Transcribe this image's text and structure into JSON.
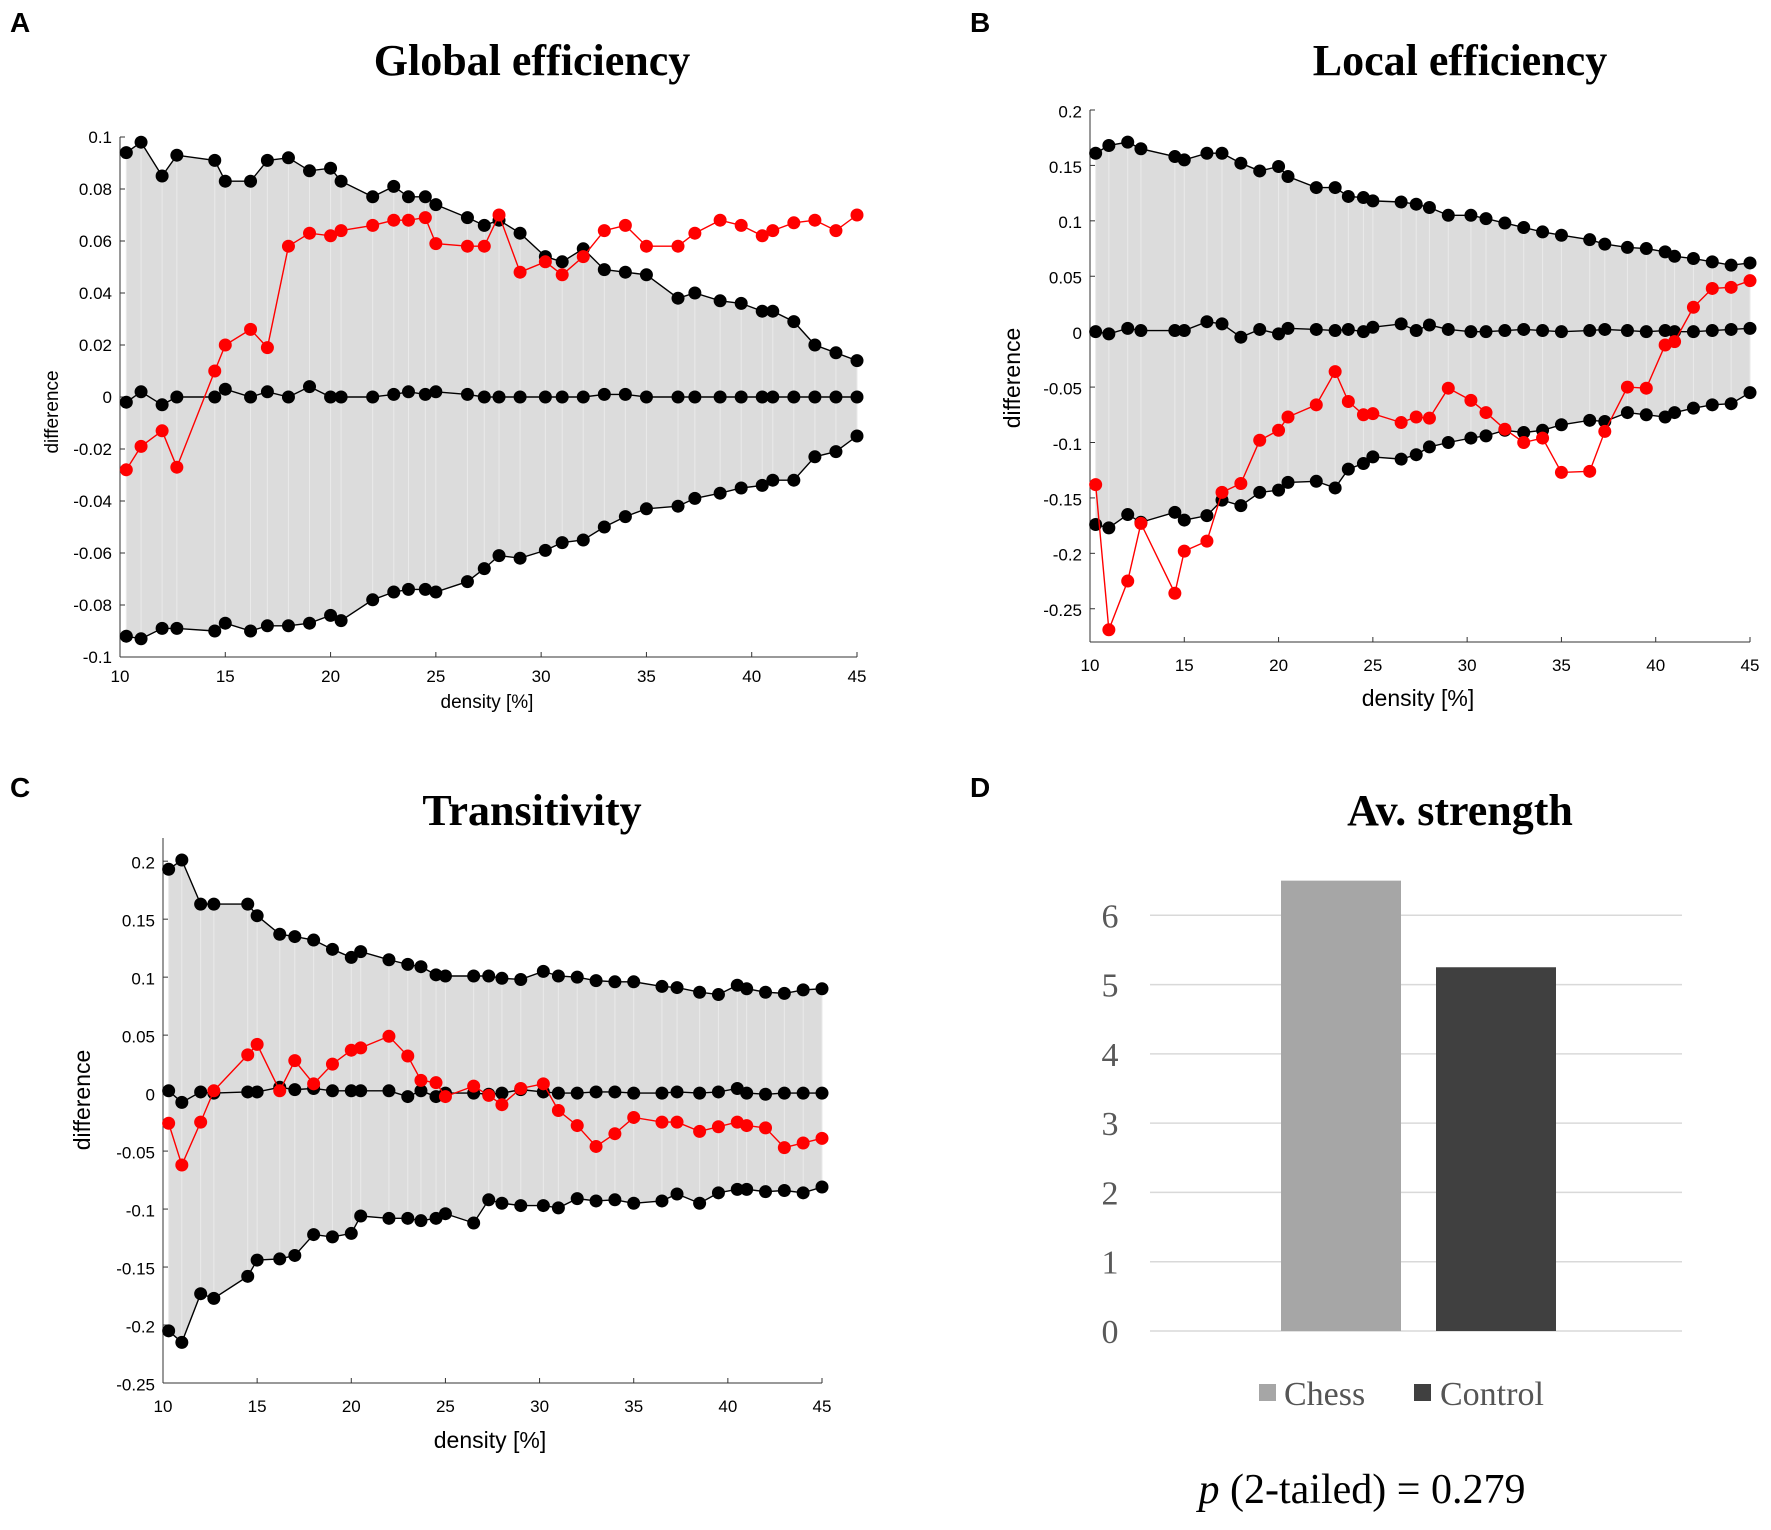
{
  "chart_data": [
    {
      "panel": "A",
      "type": "line",
      "title": "Global efficiency",
      "xlabel": "density [%]",
      "ylabel": "difference",
      "xlim": [
        10,
        45
      ],
      "ylim": [
        -0.1,
        0.1
      ],
      "xticks": [
        "10",
        "15",
        "20",
        "25",
        "30",
        "35",
        "40",
        "45"
      ],
      "yticks": [
        "-0.1",
        "-0.08",
        "-0.06",
        "-0.04",
        "-0.02",
        "0",
        "0.02",
        "0.04",
        "0.06",
        "0.08",
        "0.1"
      ],
      "x": [
        10.3,
        11,
        12,
        12.7,
        14.5,
        15,
        16.2,
        17,
        18,
        19,
        20,
        20.5,
        22,
        23,
        23.7,
        24.5,
        25,
        26.5,
        27.3,
        28,
        29,
        30.2,
        31,
        32,
        33,
        34,
        35,
        36.5,
        37.3,
        38.5,
        39.5,
        40.5,
        41,
        42,
        43,
        44,
        45
      ],
      "series": [
        {
          "name": "upper bound",
          "color": "#000000",
          "values": [
            0.094,
            0.098,
            0.085,
            0.093,
            0.091,
            0.083,
            0.083,
            0.091,
            0.092,
            0.087,
            0.088,
            0.083,
            0.077,
            0.081,
            0.077,
            0.077,
            0.074,
            0.069,
            0.066,
            0.068,
            0.063,
            0.054,
            0.052,
            0.057,
            0.049,
            0.048,
            0.047,
            0.038,
            0.04,
            0.037,
            0.036,
            0.033,
            0.033,
            0.029,
            0.02,
            0.017,
            0.014
          ]
        },
        {
          "name": "mean",
          "color": "#000000",
          "values": [
            -0.002,
            0.002,
            -0.003,
            0,
            0,
            0.003,
            0,
            0.002,
            0,
            0.004,
            0,
            0,
            0,
            0.001,
            0.002,
            0.001,
            0.002,
            0.001,
            0,
            0,
            0,
            0,
            0,
            0,
            0.001,
            0.001,
            0,
            0,
            0,
            0,
            0,
            0,
            0,
            0,
            0,
            0,
            0
          ]
        },
        {
          "name": "lower bound",
          "color": "#000000",
          "values": [
            -0.092,
            -0.093,
            -0.089,
            -0.089,
            -0.09,
            -0.087,
            -0.09,
            -0.088,
            -0.088,
            -0.087,
            -0.084,
            -0.086,
            -0.078,
            -0.075,
            -0.074,
            -0.074,
            -0.075,
            -0.071,
            -0.066,
            -0.061,
            -0.062,
            -0.059,
            -0.056,
            -0.055,
            -0.05,
            -0.046,
            -0.043,
            -0.042,
            -0.039,
            -0.037,
            -0.035,
            -0.034,
            -0.032,
            -0.032,
            -0.023,
            -0.021,
            -0.015
          ]
        },
        {
          "name": "observed",
          "color": "#ff0000",
          "values": [
            -0.028,
            -0.019,
            -0.013,
            -0.027,
            0.01,
            0.02,
            0.026,
            0.019,
            0.058,
            0.063,
            0.062,
            0.064,
            0.066,
            0.068,
            0.068,
            0.069,
            0.059,
            0.058,
            0.058,
            0.07,
            0.048,
            0.052,
            0.047,
            0.054,
            0.064,
            0.066,
            0.058,
            0.058,
            0.063,
            0.068,
            0.066,
            0.062,
            0.064,
            0.067,
            0.068,
            0.064,
            0.07
          ]
        }
      ]
    },
    {
      "panel": "B",
      "type": "line",
      "title": "Local efficiency",
      "xlabel": "density [%]",
      "ylabel": "difference",
      "xlim": [
        10,
        45
      ],
      "ylim": [
        -0.28,
        0.2
      ],
      "xticks": [
        "10",
        "15",
        "20",
        "25",
        "30",
        "35",
        "40",
        "45"
      ],
      "yticks": [
        "-0.25",
        "-0.2",
        "-0.15",
        "-0.1",
        "-0.05",
        "0",
        "0.05",
        "0.1",
        "0.15",
        "0.2"
      ],
      "x": [
        10.3,
        11,
        12,
        12.7,
        14.5,
        15,
        16.2,
        17,
        18,
        19,
        20,
        20.5,
        22,
        23,
        23.7,
        24.5,
        25,
        26.5,
        27.3,
        28,
        29,
        30.2,
        31,
        32,
        33,
        34,
        35,
        36.5,
        37.3,
        38.5,
        39.5,
        40.5,
        41,
        42,
        43,
        44,
        45
      ],
      "series": [
        {
          "name": "upper bound",
          "color": "#000000",
          "values": [
            0.161,
            0.168,
            0.171,
            0.165,
            0.158,
            0.155,
            0.161,
            0.161,
            0.152,
            0.145,
            0.149,
            0.14,
            0.13,
            0.13,
            0.122,
            0.121,
            0.118,
            0.117,
            0.115,
            0.112,
            0.105,
            0.105,
            0.102,
            0.098,
            0.094,
            0.09,
            0.087,
            0.083,
            0.079,
            0.076,
            0.075,
            0.072,
            0.068,
            0.066,
            0.063,
            0.06,
            0.062
          ]
        },
        {
          "name": "mean",
          "color": "#000000",
          "values": [
            0,
            -0.002,
            0.003,
            0.001,
            0.001,
            0.001,
            0.009,
            0.007,
            -0.005,
            0.002,
            -0.002,
            0.003,
            0.002,
            0.001,
            0.002,
            0,
            0.004,
            0.007,
            0.001,
            0.006,
            0.002,
            0,
            0,
            0.001,
            0.002,
            0.001,
            0,
            0.001,
            0.002,
            0.001,
            0,
            0.001,
            0,
            0,
            0.001,
            0.002,
            0.003
          ]
        },
        {
          "name": "lower bound",
          "color": "#000000",
          "values": [
            -0.174,
            -0.177,
            -0.165,
            -0.172,
            -0.163,
            -0.17,
            -0.166,
            -0.152,
            -0.157,
            -0.145,
            -0.143,
            -0.136,
            -0.135,
            -0.141,
            -0.124,
            -0.119,
            -0.113,
            -0.115,
            -0.111,
            -0.104,
            -0.1,
            -0.096,
            -0.094,
            -0.089,
            -0.091,
            -0.089,
            -0.084,
            -0.08,
            -0.081,
            -0.073,
            -0.075,
            -0.077,
            -0.073,
            -0.069,
            -0.066,
            -0.065,
            -0.055
          ]
        },
        {
          "name": "observed",
          "color": "#ff0000",
          "values": [
            -0.138,
            -0.269,
            -0.225,
            -0.173,
            -0.236,
            -0.198,
            -0.189,
            -0.145,
            -0.137,
            -0.098,
            -0.089,
            -0.077,
            -0.066,
            -0.036,
            -0.063,
            -0.075,
            -0.074,
            -0.082,
            -0.077,
            -0.078,
            -0.051,
            -0.062,
            -0.073,
            -0.088,
            -0.1,
            -0.096,
            -0.127,
            -0.126,
            -0.09,
            -0.05,
            -0.051,
            -0.012,
            -0.009,
            0.022,
            0.039,
            0.04,
            0.046
          ]
        }
      ]
    },
    {
      "panel": "C",
      "type": "line",
      "title": "Transitivity",
      "xlabel": "density [%]",
      "ylabel": "difference",
      "xlim": [
        10,
        45
      ],
      "ylim": [
        -0.25,
        0.22
      ],
      "xticks": [
        "10",
        "15",
        "20",
        "25",
        "30",
        "35",
        "40",
        "45"
      ],
      "yticks": [
        "-0.25",
        "-0.2",
        "-0.15",
        "-0.1",
        "-0.05",
        "0",
        "0.05",
        "0.1",
        "0.15",
        "0.2"
      ],
      "x": [
        10.3,
        11,
        12,
        12.7,
        14.5,
        15,
        16.2,
        17,
        18,
        19,
        20,
        20.5,
        22,
        23,
        23.7,
        24.5,
        25,
        26.5,
        27.3,
        28,
        29,
        30.2,
        31,
        32,
        33,
        34,
        35,
        36.5,
        37.3,
        38.5,
        39.5,
        40.5,
        41,
        42,
        43,
        44,
        45
      ],
      "series": [
        {
          "name": "upper bound",
          "color": "#000000",
          "values": [
            0.193,
            0.201,
            0.163,
            0.163,
            0.163,
            0.153,
            0.137,
            0.135,
            0.132,
            0.124,
            0.117,
            0.122,
            0.115,
            0.111,
            0.109,
            0.102,
            0.101,
            0.101,
            0.101,
            0.099,
            0.098,
            0.105,
            0.101,
            0.1,
            0.097,
            0.096,
            0.096,
            0.092,
            0.091,
            0.087,
            0.085,
            0.093,
            0.09,
            0.087,
            0.086,
            0.089,
            0.09
          ]
        },
        {
          "name": "mean",
          "color": "#000000",
          "values": [
            0.002,
            -0.008,
            0.001,
            0,
            0.001,
            0.001,
            0.005,
            0.003,
            0.004,
            0.002,
            0.002,
            0.002,
            0.002,
            -0.003,
            0.002,
            -0.003,
            0,
            0,
            -0.001,
            0,
            0.003,
            0.001,
            0,
            0,
            0.001,
            0.001,
            0,
            0,
            0.001,
            0,
            0.001,
            0.004,
            0,
            -0.001,
            0,
            0,
            0
          ]
        },
        {
          "name": "lower bound",
          "color": "#000000",
          "values": [
            -0.205,
            -0.215,
            -0.173,
            -0.177,
            -0.158,
            -0.144,
            -0.143,
            -0.14,
            -0.122,
            -0.124,
            -0.121,
            -0.106,
            -0.108,
            -0.108,
            -0.11,
            -0.108,
            -0.104,
            -0.112,
            -0.092,
            -0.095,
            -0.097,
            -0.097,
            -0.099,
            -0.091,
            -0.093,
            -0.092,
            -0.095,
            -0.093,
            -0.087,
            -0.095,
            -0.086,
            -0.083,
            -0.083,
            -0.085,
            -0.084,
            -0.086,
            -0.081
          ]
        },
        {
          "name": "observed",
          "color": "#ff0000",
          "values": [
            -0.026,
            -0.062,
            -0.025,
            0.002,
            0.033,
            0.042,
            0.002,
            0.028,
            0.008,
            0.025,
            0.037,
            0.039,
            0.049,
            0.032,
            0.011,
            0.009,
            -0.003,
            0.006,
            -0.002,
            -0.01,
            0.004,
            0.008,
            -0.015,
            -0.028,
            -0.046,
            -0.035,
            -0.021,
            -0.025,
            -0.025,
            -0.033,
            -0.029,
            -0.025,
            -0.028,
            -0.03,
            -0.047,
            -0.043,
            -0.039
          ]
        }
      ]
    },
    {
      "panel": "D",
      "type": "bar",
      "title": "Av. strength",
      "categories": [
        "Chess",
        "Control"
      ],
      "values": [
        6.5,
        5.25
      ],
      "colors": [
        "#a6a6a6",
        "#404040"
      ],
      "ylim": [
        0,
        7
      ],
      "yticks": [
        "0",
        "1",
        "2",
        "3",
        "4",
        "5",
        "6"
      ],
      "legend": [
        "Chess",
        "Control"
      ],
      "footnote_p": "p",
      "footnote_rest": "(2-tailed) = 0.279"
    }
  ]
}
